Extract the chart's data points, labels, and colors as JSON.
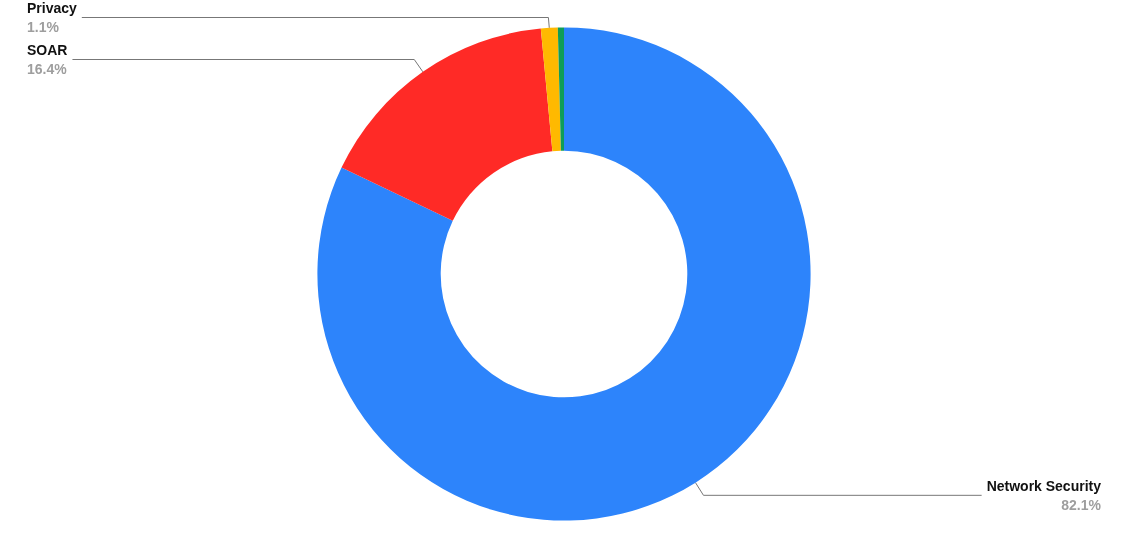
{
  "chart_data": {
    "type": "donut",
    "categories": [
      "Network Security",
      "SOAR",
      "Privacy",
      null
    ],
    "values": [
      82.1,
      16.4,
      1.1,
      0.4
    ],
    "colors": [
      "#2d84fb",
      "#ff2a26",
      "#ffb900",
      "#0f9d58"
    ],
    "value_labels": [
      "82.1%",
      "16.4%",
      "1.1%",
      null
    ],
    "legend": false
  }
}
